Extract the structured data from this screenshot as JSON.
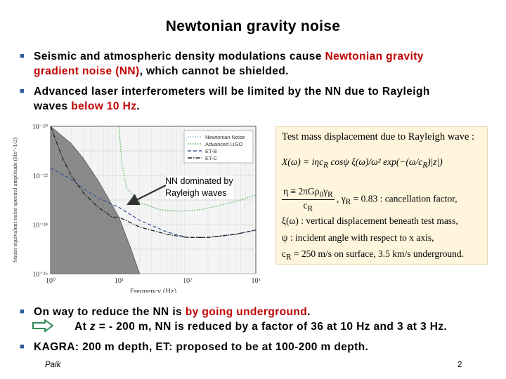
{
  "title": "Newtonian gravity noise",
  "bullets": {
    "b1": {
      "part1": "Seismic and atmospheric density modulations cause ",
      "red1": "Newtonian gravity",
      "line2_red": "gradient noise (NN)",
      "line2_rest": ", which cannot be shielded."
    },
    "b2": {
      "part1": "Advanced laser interferometers will be limited by the NN due to Rayleigh",
      "line2_start": "waves ",
      "red": "below 10 Hz",
      "end": "."
    },
    "b3": {
      "part1": "On way to reduce the NN is ",
      "red": "by going underground",
      "end": ".",
      "line2_a": "At ",
      "line2_z": "z",
      "line2_b": " = - 200 m, NN is reduced by a factor of 36 at 10 Hz and 3 at 3 Hz."
    },
    "b4": {
      "text": "KAGRA: 200 m depth, ET: proposed to be at 100-200 m depth."
    }
  },
  "annotation": {
    "line1": "NN dominated by",
    "line2": "Rayleigh waves"
  },
  "equations": {
    "heading": "Test mass displacement due to Rayleigh wave :",
    "x_lhs": "X(ω) = iηc",
    "x_sub": "R",
    "x_rhs": " cosψ ξ(ω)/ω² exp(−(ω/c",
    "x_rhs_sub": "R",
    "x_rhs_end": ")|z|)",
    "eta_lhs": "η ≡ 2πGρ",
    "eta_lhs_sub1": "0",
    "eta_lhs_mid": "γ",
    "eta_lhs_sub2": "R",
    "eta_den": "c",
    "eta_den_sub": "R",
    "eta_rhs": ", γ",
    "eta_rhs_sub": "R",
    "eta_rhs_end": " = 0.83 : cancellation factor,",
    "xi_desc": "ξ(ω) : vertical displacement beneath test mass,",
    "psi_desc": "ψ : incident angle with respect to x axis,",
    "c_lhs": "c",
    "c_sub": "R",
    "c_desc": " = 250 m/s on surface, 3.5 km/s underground."
  },
  "chart_data": {
    "type": "line",
    "title": "",
    "xlabel": "Frequency (Hz)",
    "ylabel": "Strain equivalent noise spectral amplitude (Hz^-1/2)",
    "xscale": "log",
    "yscale": "log",
    "xlim": [
      1,
      1000
    ],
    "ylim": [
      1e-26,
      1e-20
    ],
    "x_ticks": [
      "10⁰",
      "10¹",
      "10²",
      "10³"
    ],
    "y_ticks": [
      "10⁻²⁰",
      "10⁻²²",
      "10⁻²⁴",
      "10⁻²⁶"
    ],
    "legend_position": "top-right",
    "series": [
      {
        "name": "Newtonian Noise",
        "color": "#9ab0c8",
        "style": "filled",
        "x": [
          1,
          2,
          3,
          5,
          8,
          10,
          15,
          20
        ],
        "y": [
          1e-20,
          2e-21,
          5e-22,
          6e-23,
          6e-24,
          2e-24,
          1e-25,
          1e-26
        ]
      },
      {
        "name": "Advanced LIGO",
        "color": "#4caf50",
        "style": "dotted",
        "x": [
          10,
          11,
          13,
          20,
          40,
          80,
          150,
          300,
          600,
          1000
        ],
        "y": [
          1e-20,
          3e-22,
          3e-23,
          8e-24,
          4e-24,
          3.5e-24,
          4e-24,
          6e-24,
          1e-23,
          1.6e-23
        ]
      },
      {
        "name": "ET-B",
        "color": "#3d5a9a",
        "style": "dashed",
        "x": [
          1,
          2,
          3,
          5,
          10,
          20,
          50,
          100,
          200,
          500,
          1000
        ],
        "y": [
          2e-22,
          7e-23,
          3e-23,
          1.2e-23,
          5e-24,
          1.5e-24,
          5e-25,
          3e-25,
          3e-25,
          4e-25,
          6e-25
        ]
      },
      {
        "name": "ET-C",
        "color": "#222222",
        "style": "dash-dot",
        "x": [
          1,
          1.5,
          2,
          3,
          5,
          8,
          10,
          20,
          50,
          100,
          200,
          500,
          1000
        ],
        "y": [
          1e-20,
          5e-22,
          1e-22,
          2e-23,
          5e-24,
          2e-24,
          2e-24,
          8e-25,
          4e-25,
          3e-25,
          3e-25,
          4e-25,
          6e-25
        ]
      }
    ]
  },
  "footer": {
    "author": "Paik",
    "page": "2"
  }
}
